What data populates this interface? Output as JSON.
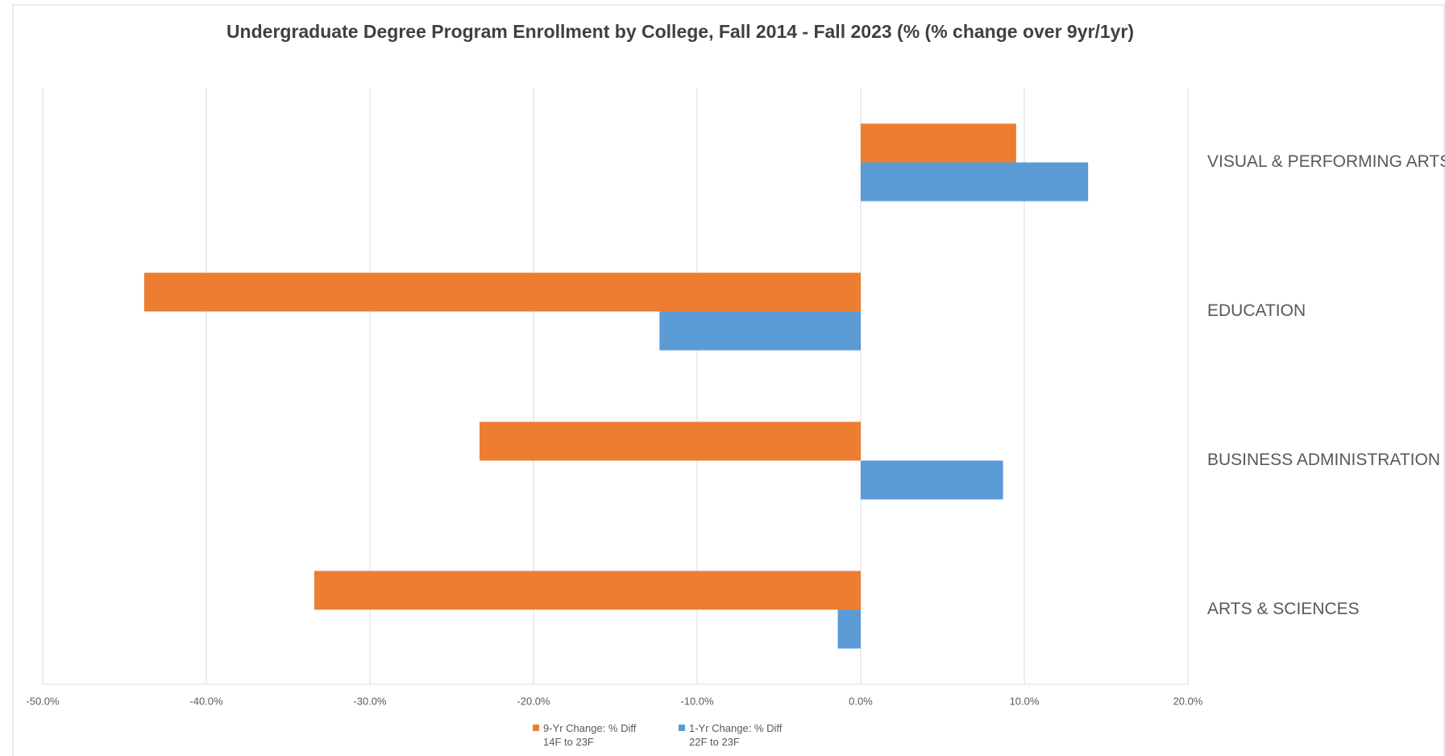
{
  "chart_data": {
    "type": "hbar",
    "title": "Undergraduate Degree Program Enrollment by College, Fall 2014 - Fall 2023 (% (% change over 9yr/1yr)",
    "categories": [
      "VISUAL & PERFORMING ARTS",
      "EDUCATION",
      "BUSINESS ADMINISTRATION",
      "ARTS & SCIENCES"
    ],
    "series": [
      {
        "name": "9-Yr Change: % Diff 14F to 23F",
        "color": "#ed7d31",
        "values": [
          9.5,
          -43.8,
          -23.3,
          -33.4
        ]
      },
      {
        "name": "1-Yr Change: % Diff 22F to 23F",
        "color": "#5b9bd5",
        "values": [
          13.9,
          -12.3,
          8.7,
          -1.4
        ]
      }
    ],
    "xlim": [
      -50,
      20
    ],
    "xticks": [
      {
        "value": -50,
        "label": "-50.0%"
      },
      {
        "value": -40,
        "label": "-40.0%"
      },
      {
        "value": -30,
        "label": "-30.0%"
      },
      {
        "value": -20,
        "label": "-20.0%"
      },
      {
        "value": -10,
        "label": "-10.0%"
      },
      {
        "value": 0,
        "label": "0.0%"
      },
      {
        "value": 10,
        "label": "10.0%"
      },
      {
        "value": 20,
        "label": "20.0%"
      }
    ],
    "grid": true,
    "legend": "bottom"
  }
}
